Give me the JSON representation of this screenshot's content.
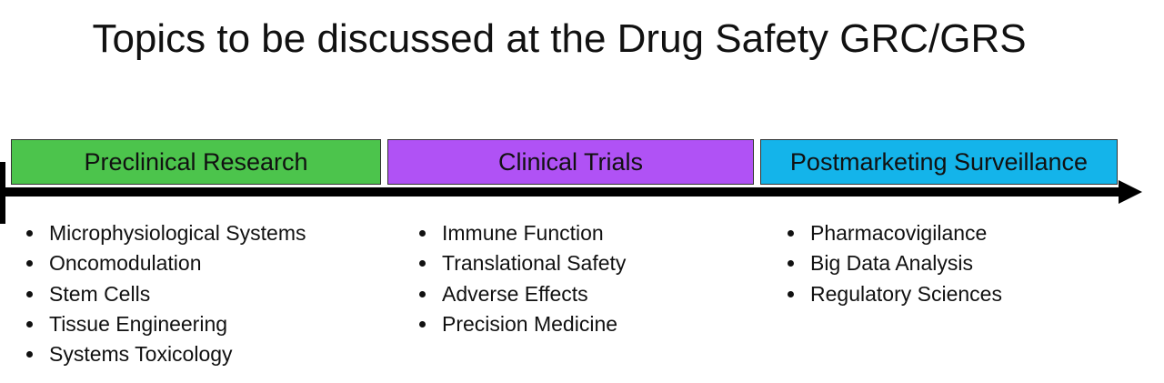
{
  "title": "Topics to be discussed at the Drug Safety GRC/GRS",
  "phases": [
    {
      "label": "Preclinical Research",
      "color": "#4cc44c",
      "items": [
        "Microphysiological Systems",
        "Oncomodulation",
        "Stem Cells",
        "Tissue Engineering",
        "Systems Toxicology"
      ]
    },
    {
      "label": "Clinical Trials",
      "color": "#b052f5",
      "items": [
        "Immune Function",
        "Translational Safety",
        "Adverse Effects",
        "Precision Medicine"
      ]
    },
    {
      "label": "Postmarketing Surveillance",
      "color": "#14b4ea",
      "items": [
        "Pharmacovigilance",
        "Big Data Analysis",
        "Regulatory Sciences"
      ]
    }
  ]
}
